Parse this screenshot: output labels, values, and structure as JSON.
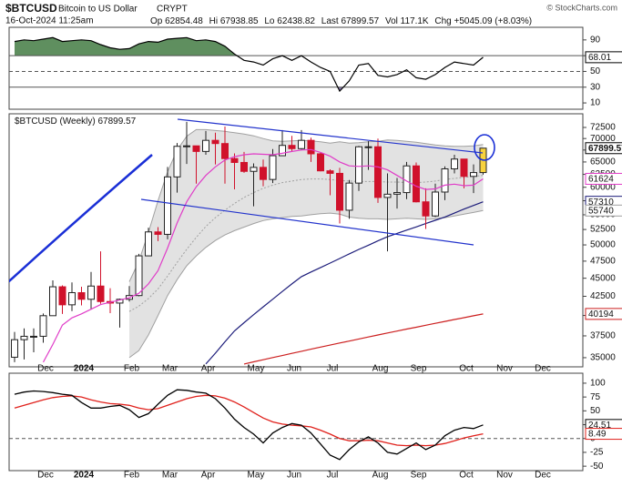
{
  "header": {
    "symbol": "$BTCUSD",
    "name": "Bitcoin to US Dollar",
    "exchange": "CRYPT",
    "date": "16-Oct-2024 11:25am",
    "copyright": "© StockCharts.com",
    "quote": {
      "op": "Op",
      "hi": "Hi",
      "lo": "Lo",
      "last": "Last",
      "vol_label": "Vol",
      "vol": "117.1K",
      "chg_label": "Chg",
      "chg": "+5045.09 (+8.03%)"
    }
  },
  "chart_data": [
    {
      "type": "rsi",
      "color": "#000000",
      "fill_above_color": "#5f8f5f",
      "fill_below_color": "#8a7db2",
      "bands": [
        30,
        70
      ],
      "ylim": [
        2,
        106
      ],
      "yticks": [
        10,
        30,
        50,
        70,
        90
      ],
      "values": [
        88,
        90,
        89,
        91,
        93,
        88,
        89,
        90,
        89,
        84,
        80,
        78,
        79,
        85,
        88,
        87,
        91,
        92,
        93,
        89,
        90,
        88,
        82,
        72,
        64,
        62,
        58,
        66,
        70,
        64,
        70,
        62,
        55,
        50,
        25,
        38,
        58,
        60,
        45,
        43,
        46,
        52,
        42,
        40,
        46,
        55,
        62,
        60,
        58,
        68.01,
        null,
        null,
        null,
        null,
        null,
        null,
        null
      ]
    },
    {
      "type": "candlestick",
      "label": "$BTCUSD (Weekly)",
      "log_scale": true,
      "ylim": [
        34000,
        75700
      ],
      "yticks": [
        35000,
        37500,
        40000,
        42500,
        45000,
        47500,
        50000,
        52500,
        55000,
        57500,
        60000,
        62500,
        65000,
        67500,
        70000,
        72500
      ],
      "up_color": "#ffffff",
      "down_color": "#d0112b",
      "highlight_color": "#f7d23e",
      "categories": [
        null,
        null,
        null,
        null,
        "Dec",
        null,
        null,
        null,
        "2024",
        null,
        null,
        null,
        null,
        "Feb",
        null,
        null,
        null,
        "Mar",
        null,
        null,
        null,
        "Apr",
        null,
        null,
        null,
        null,
        "May",
        null,
        null,
        null,
        "Jun",
        null,
        null,
        null,
        "Jul",
        null,
        null,
        null,
        null,
        "Aug",
        null,
        null,
        null,
        "Sep",
        null,
        null,
        null,
        null,
        "Oct",
        null,
        null,
        null,
        "Nov",
        null,
        null,
        null,
        "Dec"
      ],
      "open": [
        35050,
        37050,
        37450,
        37450,
        39970,
        43800,
        41370,
        42990,
        42100,
        43900,
        41800,
        41600,
        42100,
        42600,
        48300,
        52100,
        51700,
        62000,
        68300,
        68400,
        67200,
        69600,
        68900,
        65700,
        64900,
        63100,
        63900,
        61500,
        66300,
        68500,
        67800,
        69600,
        66700,
        63200,
        62700,
        55800,
        60800,
        68200,
        68200,
        58100,
        58700,
        59000,
        64200,
        57300,
        54800,
        59100,
        63600,
        65600,
        62100,
        62854.48,
        null,
        null,
        null,
        null,
        null,
        null,
        null
      ],
      "high": [
        37970,
        38400,
        38400,
        40250,
        44700,
        44000,
        44400,
        43800,
        45900,
        49000,
        43600,
        42200,
        43900,
        48600,
        52800,
        52900,
        64000,
        69000,
        73800,
        68400,
        71700,
        71300,
        72700,
        66800,
        67100,
        64700,
        65500,
        67700,
        71900,
        70600,
        71900,
        70200,
        66900,
        63500,
        63800,
        61400,
        68400,
        69400,
        70000,
        62700,
        61800,
        65000,
        64900,
        59800,
        60700,
        64100,
        66500,
        65600,
        64500,
        67938.85,
        null,
        null,
        null,
        null,
        null,
        null,
        null
      ],
      "low": [
        34500,
        34800,
        35600,
        36700,
        39970,
        40200,
        40550,
        41300,
        40750,
        41500,
        40300,
        38500,
        41800,
        42500,
        48300,
        50600,
        50900,
        59000,
        64600,
        60700,
        66500,
        64500,
        60700,
        59600,
        62800,
        56500,
        60200,
        60800,
        66300,
        67100,
        67600,
        65000,
        63100,
        58500,
        53500,
        54300,
        59300,
        63400,
        57100,
        49000,
        56100,
        57800,
        57200,
        52600,
        54600,
        57600,
        62700,
        59800,
        58900,
        62438.82,
        null,
        null,
        null,
        null,
        null,
        null,
        null
      ],
      "close": [
        37050,
        37450,
        37450,
        39970,
        43800,
        41370,
        42990,
        42100,
        43900,
        41800,
        41600,
        42100,
        42600,
        48300,
        52100,
        51700,
        62000,
        68300,
        68400,
        67200,
        69600,
        68900,
        65700,
        64900,
        63100,
        63900,
        61500,
        66300,
        68500,
        67800,
        69600,
        66700,
        63200,
        62700,
        55800,
        60800,
        68200,
        68200,
        58100,
        58700,
        59000,
        64200,
        57300,
        54800,
        59100,
        63600,
        65600,
        62100,
        62854.48,
        67899.57,
        null,
        null,
        null,
        null,
        null,
        null,
        null
      ],
      "bollinger": {
        "fill": "#e2e2e2",
        "color": "#a0a0a0",
        "upper": [
          null,
          null,
          null,
          null,
          null,
          null,
          null,
          null,
          null,
          null,
          null,
          null,
          44500,
          47500,
          52000,
          57500,
          63000,
          67500,
          70500,
          72000,
          72000,
          71800,
          71600,
          71300,
          71000,
          70600,
          70000,
          69500,
          69400,
          69500,
          69600,
          69500,
          69300,
          69000,
          69300,
          69000,
          69100,
          69300,
          69400,
          69700,
          69600,
          69400,
          69200,
          68900,
          68600,
          68400,
          68300,
          68300,
          68400,
          68700,
          null,
          null,
          null,
          null,
          null,
          null,
          null
        ],
        "middle": [
          null,
          null,
          null,
          null,
          null,
          null,
          null,
          null,
          null,
          null,
          null,
          null,
          40500,
          41200,
          42200,
          43500,
          45300,
          47300,
          49300,
          51200,
          53000,
          54500,
          55800,
          57000,
          58100,
          59000,
          59800,
          60400,
          60900,
          61200,
          61500,
          61600,
          61600,
          61500,
          61300,
          61200,
          61100,
          61100,
          61100,
          61000,
          61000,
          60900,
          60900,
          61000,
          61200,
          61500,
          61700,
          61900,
          62100,
          62300,
          null,
          null,
          null,
          null,
          null,
          null,
          null
        ],
        "lower": [
          null,
          null,
          null,
          null,
          null,
          null,
          null,
          null,
          null,
          null,
          null,
          null,
          35000,
          35800,
          37600,
          40000,
          42600,
          44800,
          46800,
          48300,
          49600,
          50700,
          51600,
          52300,
          52900,
          53500,
          54000,
          54300,
          54500,
          54700,
          54800,
          55000,
          55200,
          55300,
          55100,
          54600,
          54400,
          54300,
          54300,
          54200,
          54300,
          54400,
          54300,
          54200,
          54300,
          54500,
          54800,
          55100,
          55400,
          55740,
          null,
          null,
          null,
          null,
          null,
          null,
          null
        ]
      },
      "overlays": [
        {
          "color": "#cc1f1f",
          "values": [
            null,
            null,
            null,
            null,
            null,
            null,
            null,
            null,
            null,
            null,
            null,
            null,
            null,
            null,
            null,
            null,
            null,
            null,
            null,
            null,
            null,
            null,
            null,
            null,
            34300,
            34540,
            34770,
            35010,
            35240,
            35480,
            35720,
            35950,
            36190,
            36420,
            36660,
            36890,
            37130,
            37370,
            37600,
            37840,
            38070,
            38310,
            38540,
            38780,
            39020,
            39250,
            39490,
            39720,
            39960,
            40194,
            null,
            null,
            null,
            null,
            null,
            null,
            null
          ]
        },
        {
          "color": "#1c1c7a",
          "values": [
            null,
            null,
            null,
            null,
            null,
            null,
            null,
            null,
            null,
            null,
            null,
            null,
            null,
            null,
            null,
            null,
            null,
            null,
            null,
            null,
            34300,
            35500,
            36800,
            38100,
            39100,
            40100,
            41100,
            42110,
            43150,
            44200,
            45230,
            45900,
            46550,
            47210,
            47900,
            48600,
            49290,
            49950,
            50650,
            51300,
            51850,
            52400,
            52930,
            53500,
            54050,
            54610,
            55300,
            56000,
            56650,
            57310,
            null,
            null,
            null,
            null,
            null,
            null,
            null
          ]
        },
        {
          "color": "#e03cc8",
          "values": [
            null,
            null,
            null,
            34500,
            36500,
            38800,
            39700,
            40200,
            40800,
            41400,
            41700,
            42000,
            42300,
            42900,
            44200,
            46100,
            49500,
            53600,
            57300,
            60100,
            62300,
            64000,
            65400,
            66100,
            66500,
            66700,
            66600,
            66500,
            66800,
            67200,
            67500,
            67600,
            67000,
            66200,
            65000,
            64200,
            64100,
            64200,
            64000,
            63400,
            62300,
            61200,
            60200,
            59600,
            59700,
            60400,
            60600,
            60300,
            60400,
            61624,
            null,
            null,
            null,
            null,
            null,
            null,
            null
          ]
        }
      ]
    },
    {
      "type": "macd",
      "zero_line": true,
      "ylim": [
        -58,
        118
      ],
      "yticks": [
        -50,
        -25,
        0,
        25,
        50,
        75,
        100
      ],
      "categories": [
        null,
        null,
        null,
        null,
        "Dec",
        null,
        null,
        null,
        "2024",
        null,
        null,
        null,
        null,
        "Feb",
        null,
        null,
        null,
        "Mar",
        null,
        null,
        null,
        "Apr",
        null,
        null,
        null,
        null,
        "May",
        null,
        null,
        null,
        "Jun",
        null,
        null,
        null,
        "Jul",
        null,
        null,
        null,
        null,
        "Aug",
        null,
        null,
        null,
        "Sep",
        null,
        null,
        null,
        null,
        "Oct",
        null,
        null,
        null,
        "Nov",
        null,
        null,
        null,
        "Dec"
      ],
      "series": [
        {
          "color": "#000000",
          "values": [
            80,
            84,
            86,
            85,
            83,
            80,
            78,
            65,
            55,
            55,
            58,
            60,
            52,
            38,
            45,
            62,
            78,
            88,
            87,
            84,
            82,
            72,
            55,
            35,
            20,
            8,
            -8,
            10,
            20,
            27,
            24,
            10,
            -10,
            -30,
            -38,
            -20,
            -6,
            3,
            -8,
            -25,
            -28,
            -18,
            -8,
            -20,
            -12,
            5,
            15,
            20,
            18,
            24.51,
            null,
            null,
            null,
            null,
            null,
            null,
            null
          ]
        },
        {
          "color": "#e0201b",
          "values": [
            55,
            60,
            65,
            70,
            74,
            76,
            77,
            75,
            70,
            66,
            63,
            62,
            60,
            55,
            52,
            54,
            60,
            66,
            72,
            76,
            78,
            77,
            73,
            66,
            57,
            47,
            37,
            30,
            26,
            24,
            23,
            21,
            15,
            8,
            0,
            -4,
            -4,
            -3,
            -4,
            -8,
            -12,
            -13,
            -12,
            -13,
            -12,
            -9,
            -4,
            1,
            5,
            8.49,
            null,
            null,
            null,
            null,
            null,
            null,
            null
          ]
        }
      ]
    }
  ]
}
